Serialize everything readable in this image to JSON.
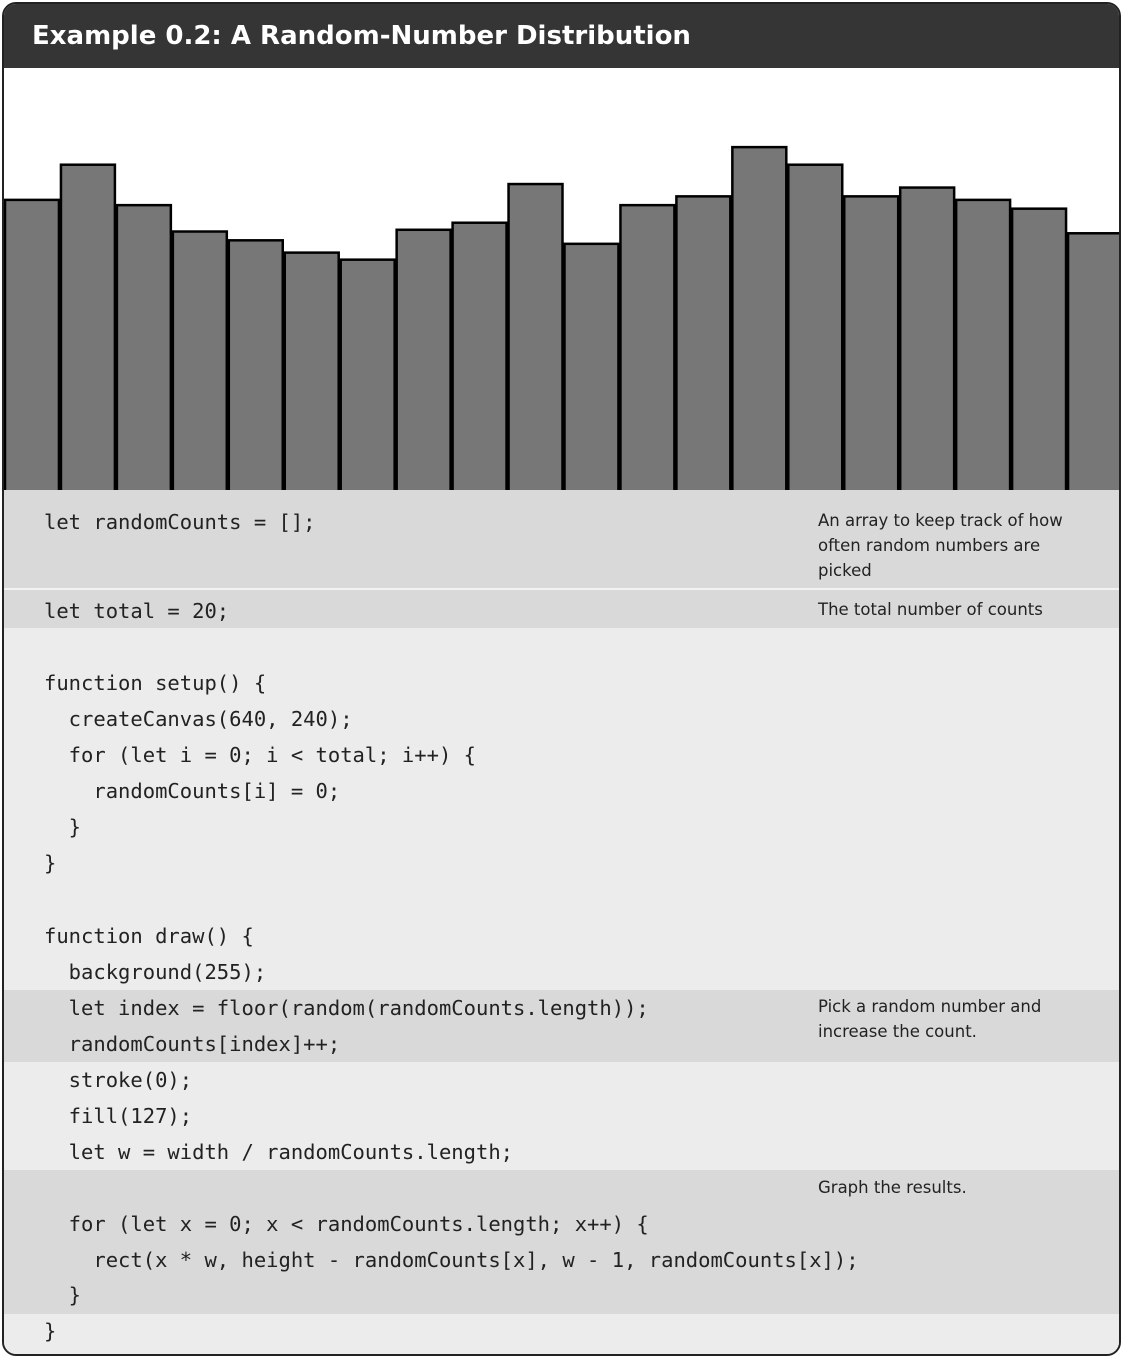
{
  "title": "Example 0.2: A Random-Number Distribution",
  "chart_data": {
    "type": "bar",
    "values": [
      165,
      185,
      162,
      147,
      142,
      135,
      131,
      148,
      152,
      174,
      140,
      162,
      167,
      195,
      185,
      167,
      172,
      165,
      160,
      146
    ],
    "ylim": [
      0,
      240
    ],
    "bar_fill": "#777777",
    "bar_stroke": "#000000",
    "background": "#ffffff"
  },
  "code": {
    "lines": [
      "let randomCounts = [];",
      "let total = 20;",
      "function setup() {",
      "  createCanvas(640, 240);",
      "  for (let i = 0; i < total; i++) {",
      "    randomCounts[i] = 0;",
      "  }",
      "}",
      "function draw() {",
      "  background(255);",
      "  let index = floor(random(randomCounts.length));",
      "  randomCounts[index]++;",
      "  stroke(0);",
      "  fill(127);",
      "  let w = width / randomCounts.length;",
      "  for (let x = 0; x < randomCounts.length; x++) {",
      "    rect(x * w, height - randomCounts[x], w - 1, randomCounts[x]);",
      "  }",
      "}"
    ]
  },
  "notes": [
    "An array to keep track of how often random numbers are picked",
    "The total number of counts",
    "Pick a random number and increase the count.",
    "Graph the results."
  ],
  "colors": {
    "title_bar": "#353535",
    "code_background": "#ececec",
    "highlight_band": "#d9d9d9"
  }
}
